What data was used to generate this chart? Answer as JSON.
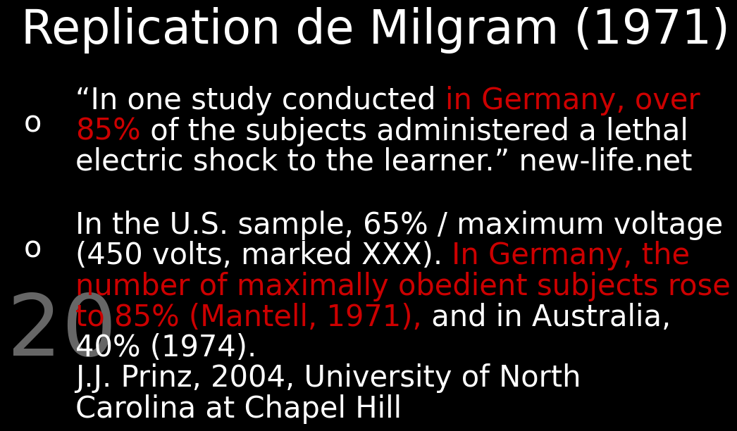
{
  "background_color": "#000000",
  "title": "Replication de Milgram (1971)",
  "title_color": "#ffffff",
  "title_fontsize": 48,
  "title_fontweight": "normal",
  "white": "#ffffff",
  "red": "#cc0000",
  "gray": "#666666",
  "text_fontsize": 30,
  "bullet_fontsize": 30,
  "number_fontsize": 88,
  "bullet1_lines": [
    [
      [
        "“In one study conducted ",
        "#ffffff"
      ],
      [
        "in Germany, over",
        "#cc0000"
      ]
    ],
    [
      [
        "85%",
        "#cc0000"
      ],
      [
        " of the subjects administered a lethal",
        "#ffffff"
      ]
    ],
    [
      [
        "electric shock to the learner.” new-life.net",
        "#ffffff"
      ]
    ]
  ],
  "bullet2_lines": [
    [
      [
        "In the U.S. sample, 65% / maximum voltage",
        "#ffffff"
      ]
    ],
    [
      [
        "(450 volts, marked XXX). ",
        "#ffffff"
      ],
      [
        "In Germany, the",
        "#cc0000"
      ]
    ],
    [
      [
        "number of maximally obedient subjects rose",
        "#cc0000"
      ]
    ],
    [
      [
        "to 85% (Mantell, 1971),",
        "#cc0000"
      ],
      [
        " and in Australia,",
        "#ffffff"
      ]
    ],
    [
      [
        "40% (1974).",
        "#ffffff"
      ]
    ],
    [
      [
        "J.J. Prinz, 2004, University of North",
        "#ffffff"
      ]
    ],
    [
      [
        "Carolina at Chapel Hill",
        "#ffffff"
      ]
    ]
  ]
}
